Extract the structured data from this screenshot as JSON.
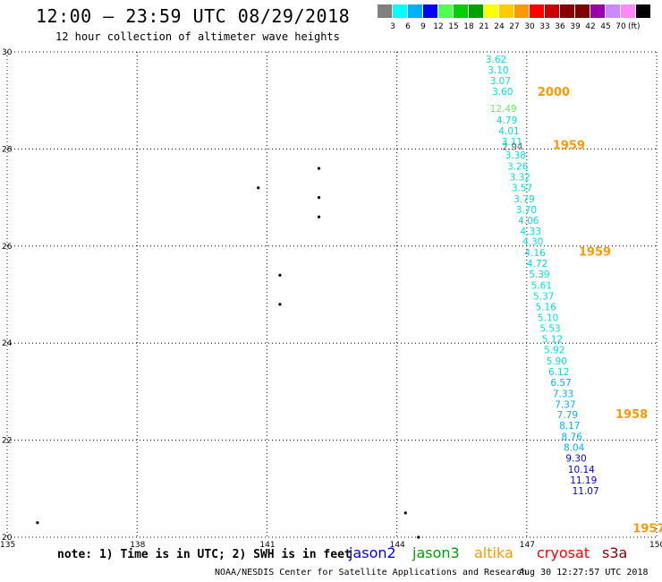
{
  "header": {
    "title": "12:00 – 23:59 UTC 08/29/2018",
    "subtitle": "12 hour collection of altimeter wave heights"
  },
  "colorbar": {
    "colors": [
      "#808080",
      "#00ffff",
      "#00b0ff",
      "#0000ff",
      "#50ff50",
      "#00d000",
      "#00a000",
      "#ffff00",
      "#ffcc00",
      "#ff9900",
      "#ff0000",
      "#cc0000",
      "#880000",
      "#800000",
      "#9900aa",
      "#cc88ff",
      "#ff88ff",
      "#000000"
    ],
    "labels": [
      "3",
      "6",
      "9",
      "12",
      "15",
      "18",
      "21",
      "24",
      "27",
      "30",
      "33",
      "36",
      "39",
      "42",
      "45",
      "70"
    ],
    "unit": "(ft)"
  },
  "map": {
    "lat_labels": [
      "30",
      "28",
      "26",
      "24",
      "22",
      "20"
    ],
    "lon_labels": [
      "135",
      "138",
      "141",
      "144",
      "147",
      "150"
    ],
    "xlim": [
      135,
      150
    ],
    "ylim": [
      20,
      30
    ]
  },
  "wave_heights": [
    {
      "text": "3.62",
      "lon": 146.05,
      "lat": 29.78,
      "color": "#00e0e0"
    },
    {
      "text": "3.10",
      "lon": 146.1,
      "lat": 29.56,
      "color": "#00e0e0"
    },
    {
      "text": "3.07",
      "lon": 146.15,
      "lat": 29.34,
      "color": "#00e0e0"
    },
    {
      "text": "3.60",
      "lon": 146.2,
      "lat": 29.11,
      "color": "#00e0e0"
    },
    {
      "text": "12.49",
      "lon": 146.15,
      "lat": 28.76,
      "color": "#50ff50"
    },
    {
      "text": "4.79",
      "lon": 146.3,
      "lat": 28.52,
      "color": "#00e0e0"
    },
    {
      "text": "4.01",
      "lon": 146.35,
      "lat": 28.3,
      "color": "#00e0e0"
    },
    {
      "text": "3.11",
      "lon": 146.42,
      "lat": 28.08,
      "color": "#00e0e0"
    },
    {
      "text": "2.94",
      "lon": 146.43,
      "lat": 27.98,
      "color": "#707070"
    },
    {
      "text": "3.38",
      "lon": 146.5,
      "lat": 27.8,
      "color": "#00e0e0"
    },
    {
      "text": "3.26",
      "lon": 146.55,
      "lat": 27.57,
      "color": "#00e0e0"
    },
    {
      "text": "3.32",
      "lon": 146.6,
      "lat": 27.35,
      "color": "#00e0e0"
    },
    {
      "text": "3.57",
      "lon": 146.65,
      "lat": 27.13,
      "color": "#00e0e0"
    },
    {
      "text": "3.79",
      "lon": 146.7,
      "lat": 26.9,
      "color": "#00e0e0"
    },
    {
      "text": "3.70",
      "lon": 146.75,
      "lat": 26.68,
      "color": "#00e0e0"
    },
    {
      "text": "4.06",
      "lon": 146.8,
      "lat": 26.46,
      "color": "#00e0e0"
    },
    {
      "text": "4.33",
      "lon": 146.85,
      "lat": 26.24,
      "color": "#00e0e0"
    },
    {
      "text": "4.30",
      "lon": 146.9,
      "lat": 26.02,
      "color": "#00e0e0"
    },
    {
      "text": "4.16",
      "lon": 146.95,
      "lat": 25.79,
      "color": "#00e0e0"
    },
    {
      "text": "4.72",
      "lon": 147.0,
      "lat": 25.57,
      "color": "#00e0e0"
    },
    {
      "text": "5.39",
      "lon": 147.05,
      "lat": 25.35,
      "color": "#00e0e0"
    },
    {
      "text": "5.61",
      "lon": 147.1,
      "lat": 25.12,
      "color": "#00e0e0"
    },
    {
      "text": "5.37",
      "lon": 147.15,
      "lat": 24.9,
      "color": "#00e0e0"
    },
    {
      "text": "5.16",
      "lon": 147.2,
      "lat": 24.68,
      "color": "#00e0e0"
    },
    {
      "text": "5.10",
      "lon": 147.25,
      "lat": 24.46,
      "color": "#00e0e0"
    },
    {
      "text": "5.53",
      "lon": 147.3,
      "lat": 24.23,
      "color": "#00e0e0"
    },
    {
      "text": "5.12",
      "lon": 147.35,
      "lat": 24.01,
      "color": "#00e0e0"
    },
    {
      "text": "5.92",
      "lon": 147.4,
      "lat": 23.79,
      "color": "#00e0e0"
    },
    {
      "text": "5.90",
      "lon": 147.45,
      "lat": 23.56,
      "color": "#00e0e0"
    },
    {
      "text": "6.12",
      "lon": 147.5,
      "lat": 23.34,
      "color": "#00e0e0"
    },
    {
      "text": "6.57",
      "lon": 147.55,
      "lat": 23.12,
      "color": "#00b0ff"
    },
    {
      "text": "7.33",
      "lon": 147.6,
      "lat": 22.89,
      "color": "#00b0ff"
    },
    {
      "text": "7.37",
      "lon": 147.65,
      "lat": 22.67,
      "color": "#00b0ff"
    },
    {
      "text": "7.79",
      "lon": 147.7,
      "lat": 22.45,
      "color": "#00b0ff"
    },
    {
      "text": "8.17",
      "lon": 147.75,
      "lat": 22.23,
      "color": "#00b0ff"
    },
    {
      "text": "8.76",
      "lon": 147.8,
      "lat": 22.0,
      "color": "#00b0ff"
    },
    {
      "text": "8.04",
      "lon": 147.85,
      "lat": 21.78,
      "color": "#00b0ff"
    },
    {
      "text": "9.30",
      "lon": 147.9,
      "lat": 21.56,
      "color": "#0000ff"
    },
    {
      "text": "10.14",
      "lon": 147.95,
      "lat": 21.33,
      "color": "#0000ff"
    },
    {
      "text": "11.19",
      "lon": 148.0,
      "lat": 21.11,
      "color": "#0000ff"
    },
    {
      "text": "11.07",
      "lon": 148.05,
      "lat": 20.89,
      "color": "#0000ff"
    }
  ],
  "time_marks": [
    {
      "text": "2000",
      "lon": 147.25,
      "lat": 29.1,
      "color": "#ff9900"
    },
    {
      "text": "1959",
      "lon": 147.6,
      "lat": 28.0,
      "color": "#ff9900"
    },
    {
      "text": "1959",
      "lon": 148.2,
      "lat": 25.8,
      "color": "#ff9900"
    },
    {
      "text": "1958",
      "lon": 149.05,
      "lat": 22.45,
      "color": "#ff9900"
    },
    {
      "text": "1957",
      "lon": 149.45,
      "lat": 20.1,
      "color": "#ff9900"
    }
  ],
  "footer": {
    "note": "note: 1) Time is in UTC; 2) SWH is in feet",
    "satellites": [
      {
        "name": "jason2",
        "color": "#0000ff"
      },
      {
        "name": "jason3",
        "color": "#00a000"
      },
      {
        "name": "altika",
        "color": "#ff9900"
      },
      {
        "name": "cryosat",
        "color": "#ff0000"
      },
      {
        "name": "s3a",
        "color": "#880000"
      }
    ],
    "credit": "NOAA/NESDIS Center for Satellite Applications and Research",
    "timestamp": "Aug 30 12:27:57 UTC 2018"
  }
}
